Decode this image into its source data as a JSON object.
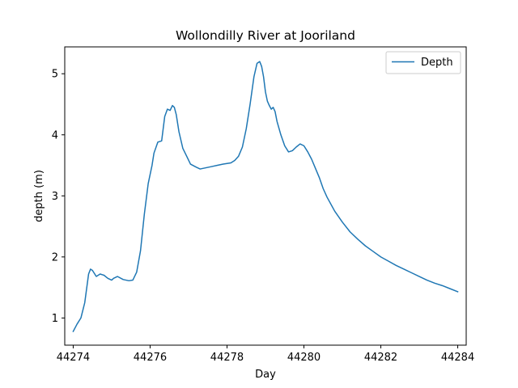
{
  "chart_data": {
    "type": "line",
    "title": "Wollondilly River at Jooriland",
    "xlabel": "Day",
    "ylabel": "depth (m)",
    "xlim": [
      44273.78,
      44284.22
    ],
    "ylim": [
      0.555,
      5.44
    ],
    "xticks": [
      44274,
      44276,
      44278,
      44280,
      44282,
      44284
    ],
    "yticks": [
      1,
      2,
      3,
      4,
      5
    ],
    "grid": false,
    "legend": "top-right",
    "series": [
      {
        "name": "Depth",
        "color": "#1f77b4",
        "x": [
          44274.0,
          44274.1,
          44274.2,
          44274.3,
          44274.4,
          44274.45,
          44274.5,
          44274.6,
          44274.7,
          44274.8,
          44274.9,
          44275.0,
          44275.05,
          44275.15,
          44275.3,
          44275.45,
          44275.55,
          44275.65,
          44275.75,
          44275.85,
          44275.95,
          44276.0,
          44276.05,
          44276.1,
          44276.2,
          44276.3,
          44276.38,
          44276.45,
          44276.52,
          44276.58,
          44276.63,
          44276.68,
          44276.75,
          44276.85,
          44276.95,
          44277.05,
          44277.2,
          44277.3,
          44277.45,
          44277.6,
          44277.75,
          44277.9,
          44278.0,
          44278.1,
          44278.2,
          44278.3,
          44278.4,
          44278.5,
          44278.6,
          44278.7,
          44278.78,
          44278.85,
          44278.9,
          44278.95,
          44279.0,
          44279.05,
          44279.1,
          44279.15,
          44279.2,
          44279.25,
          44279.3,
          44279.4,
          44279.5,
          44279.6,
          44279.7,
          44279.8,
          44279.9,
          44280.0,
          44280.1,
          44280.2,
          44280.3,
          44280.4,
          44280.5,
          44280.6,
          44280.8,
          44281.0,
          44281.2,
          44281.4,
          44281.6,
          44281.8,
          44282.0,
          44282.2,
          44282.4,
          44282.6,
          44282.8,
          44283.0,
          44283.2,
          44283.4,
          44283.6,
          44283.8,
          44284.0
        ],
        "y": [
          0.78,
          0.9,
          1.0,
          1.25,
          1.72,
          1.8,
          1.78,
          1.68,
          1.72,
          1.7,
          1.65,
          1.62,
          1.65,
          1.68,
          1.63,
          1.61,
          1.62,
          1.75,
          2.1,
          2.7,
          3.2,
          3.35,
          3.5,
          3.7,
          3.88,
          3.9,
          4.3,
          4.42,
          4.4,
          4.48,
          4.45,
          4.33,
          4.05,
          3.78,
          3.65,
          3.52,
          3.47,
          3.44,
          3.46,
          3.48,
          3.5,
          3.52,
          3.53,
          3.54,
          3.58,
          3.65,
          3.8,
          4.1,
          4.5,
          4.95,
          5.17,
          5.2,
          5.12,
          4.95,
          4.7,
          4.55,
          4.48,
          4.42,
          4.45,
          4.38,
          4.22,
          4.0,
          3.82,
          3.72,
          3.74,
          3.8,
          3.85,
          3.82,
          3.72,
          3.6,
          3.45,
          3.3,
          3.12,
          2.98,
          2.75,
          2.57,
          2.41,
          2.29,
          2.18,
          2.09,
          2.0,
          1.93,
          1.86,
          1.8,
          1.74,
          1.68,
          1.62,
          1.57,
          1.53,
          1.48,
          1.43
        ]
      }
    ]
  }
}
